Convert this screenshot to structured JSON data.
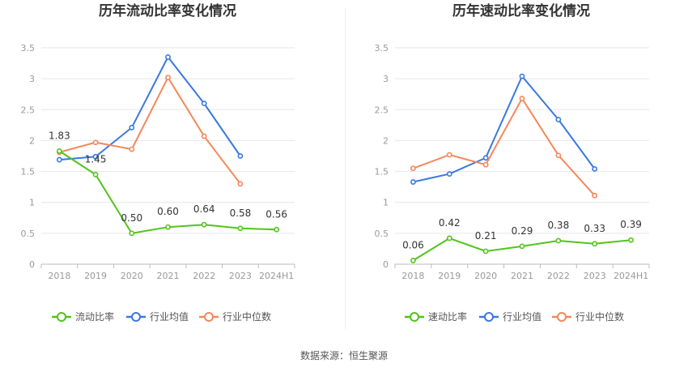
{
  "source_label": "数据来源：恒生聚源",
  "colors": {
    "company": "#52c41a",
    "industry_avg": "#3a78e0",
    "industry_median": "#f4875b",
    "grid": "#e6e6e6",
    "axis": "#999999"
  },
  "chart_data": [
    {
      "type": "line",
      "title": "历年流动比率变化情况",
      "categories": [
        "2018",
        "2019",
        "2020",
        "2021",
        "2022",
        "2023",
        "2024H1"
      ],
      "ylim": [
        0,
        3.5
      ],
      "yticks": [
        "0",
        "0.5",
        "1",
        "1.5",
        "2",
        "2.5",
        "3",
        "3.5"
      ],
      "grid": true,
      "legend_position": "bottom",
      "series": [
        {
          "name": "流动比率",
          "color": "#52c41a",
          "values": [
            1.83,
            1.45,
            0.5,
            0.6,
            0.64,
            0.58,
            0.56
          ],
          "labels": [
            "1.83",
            "1.45",
            "0.50",
            "0.60",
            "0.64",
            "0.58",
            "0.56"
          ]
        },
        {
          "name": "行业均值",
          "color": "#3a78e0",
          "values": [
            1.69,
            1.74,
            2.21,
            3.35,
            2.6,
            1.75,
            null
          ]
        },
        {
          "name": "行业中位数",
          "color": "#f4875b",
          "values": [
            1.81,
            1.97,
            1.86,
            3.02,
            2.07,
            1.3,
            null
          ]
        }
      ]
    },
    {
      "type": "line",
      "title": "历年速动比率变化情况",
      "categories": [
        "2018",
        "2019",
        "2020",
        "2021",
        "2022",
        "2023",
        "2024H1"
      ],
      "ylim": [
        0,
        3.5
      ],
      "yticks": [
        "0",
        "0.5",
        "1",
        "1.5",
        "2",
        "2.5",
        "3",
        "3.5"
      ],
      "grid": true,
      "legend_position": "bottom",
      "series": [
        {
          "name": "速动比率",
          "color": "#52c41a",
          "values": [
            0.06,
            0.42,
            0.21,
            0.29,
            0.38,
            0.33,
            0.39
          ],
          "labels": [
            "0.06",
            "0.42",
            "0.21",
            "0.29",
            "0.38",
            "0.33",
            "0.39"
          ]
        },
        {
          "name": "行业均值",
          "color": "#3a78e0",
          "values": [
            1.33,
            1.46,
            1.72,
            3.04,
            2.34,
            1.54,
            null
          ]
        },
        {
          "name": "行业中位数",
          "color": "#f4875b",
          "values": [
            1.55,
            1.77,
            1.61,
            2.68,
            1.76,
            1.11,
            null
          ]
        }
      ]
    }
  ]
}
